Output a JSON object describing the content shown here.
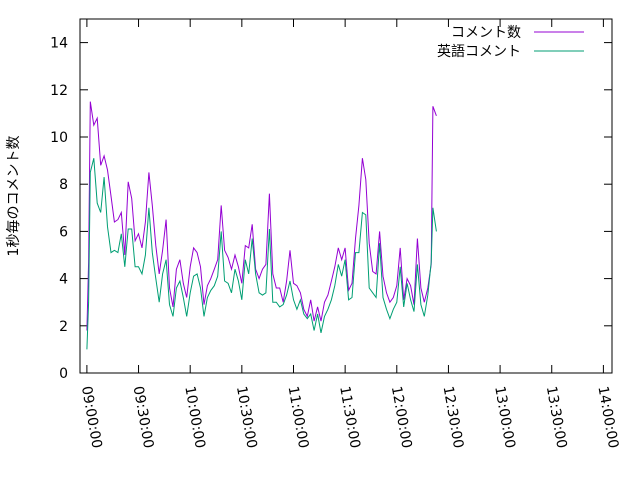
{
  "chart_data": {
    "type": "line",
    "title": "",
    "xlabel": "",
    "ylabel": "1秒毎のコメント数",
    "ylim": [
      0,
      15
    ],
    "yticks": [
      0,
      2,
      4,
      6,
      8,
      10,
      12,
      14
    ],
    "xlim": [
      "08:56:00",
      "14:05:00"
    ],
    "xticks": [
      "09:00:00",
      "09:30:00",
      "10:00:00",
      "10:30:00",
      "11:00:00",
      "11:30:00",
      "12:00:00",
      "12:30:00",
      "13:00:00",
      "13:30:00",
      "14:00:00"
    ],
    "grid": false,
    "legend": "top-right",
    "series": [
      {
        "name": "コメント数",
        "color": "#9400d3",
        "points": [
          [
            "09:00:00",
            1.8
          ],
          [
            "09:01:00",
            4.7
          ],
          [
            "09:02:00",
            11.5
          ],
          [
            "09:04:00",
            10.5
          ],
          [
            "09:06:00",
            10.8
          ],
          [
            "09:08:00",
            8.8
          ],
          [
            "09:10:00",
            9.2
          ],
          [
            "09:12:00",
            8.6
          ],
          [
            "09:14:00",
            7.5
          ],
          [
            "09:16:00",
            6.4
          ],
          [
            "09:18:00",
            6.5
          ],
          [
            "09:20:00",
            6.8
          ],
          [
            "09:22:00",
            5.0
          ],
          [
            "09:24:00",
            8.1
          ],
          [
            "09:26:00",
            7.4
          ],
          [
            "09:28:00",
            5.6
          ],
          [
            "09:30:00",
            5.9
          ],
          [
            "09:32:00",
            5.3
          ],
          [
            "09:34:00",
            6.4
          ],
          [
            "09:36:00",
            8.5
          ],
          [
            "09:38:00",
            7.1
          ],
          [
            "09:40:00",
            5.4
          ],
          [
            "09:42:00",
            4.2
          ],
          [
            "09:44:00",
            5.2
          ],
          [
            "09:46:00",
            6.5
          ],
          [
            "09:48:00",
            3.6
          ],
          [
            "09:50:00",
            2.8
          ],
          [
            "09:52:00",
            4.4
          ],
          [
            "09:54:00",
            4.8
          ],
          [
            "09:56:00",
            3.8
          ],
          [
            "09:58:00",
            3.2
          ],
          [
            "10:00:00",
            4.5
          ],
          [
            "10:02:00",
            5.3
          ],
          [
            "10:04:00",
            5.1
          ],
          [
            "10:06:00",
            4.5
          ],
          [
            "10:08:00",
            2.9
          ],
          [
            "10:10:00",
            3.7
          ],
          [
            "10:12:00",
            4.0
          ],
          [
            "10:14:00",
            4.4
          ],
          [
            "10:16:00",
            4.8
          ],
          [
            "10:18:00",
            7.1
          ],
          [
            "10:20:00",
            5.2
          ],
          [
            "10:22:00",
            4.9
          ],
          [
            "10:24:00",
            4.4
          ],
          [
            "10:26:00",
            5.0
          ],
          [
            "10:28:00",
            4.5
          ],
          [
            "10:30:00",
            3.8
          ],
          [
            "10:32:00",
            5.4
          ],
          [
            "10:34:00",
            5.3
          ],
          [
            "10:36:00",
            6.3
          ],
          [
            "10:38:00",
            4.4
          ],
          [
            "10:40:00",
            4.0
          ],
          [
            "10:42:00",
            4.4
          ],
          [
            "10:44:00",
            4.6
          ],
          [
            "10:46:00",
            7.6
          ],
          [
            "10:48:00",
            4.2
          ],
          [
            "10:50:00",
            3.6
          ],
          [
            "10:52:00",
            3.6
          ],
          [
            "10:54:00",
            3.0
          ],
          [
            "10:56:00",
            3.9
          ],
          [
            "10:58:00",
            5.2
          ],
          [
            "11:00:00",
            3.8
          ],
          [
            "11:02:00",
            3.7
          ],
          [
            "11:04:00",
            3.4
          ],
          [
            "11:06:00",
            2.7
          ],
          [
            "11:08:00",
            2.4
          ],
          [
            "11:10:00",
            3.1
          ],
          [
            "11:12:00",
            2.2
          ],
          [
            "11:14:00",
            2.8
          ],
          [
            "11:16:00",
            2.2
          ],
          [
            "11:18:00",
            3.0
          ],
          [
            "11:20:00",
            3.3
          ],
          [
            "11:22:00",
            3.9
          ],
          [
            "11:24:00",
            4.5
          ],
          [
            "11:26:00",
            5.3
          ],
          [
            "11:28:00",
            4.8
          ],
          [
            "11:30:00",
            5.3
          ],
          [
            "11:32:00",
            3.5
          ],
          [
            "11:34:00",
            3.8
          ],
          [
            "11:36:00",
            5.7
          ],
          [
            "11:38:00",
            7.1
          ],
          [
            "11:40:00",
            9.1
          ],
          [
            "11:42:00",
            8.2
          ],
          [
            "11:44:00",
            5.5
          ],
          [
            "11:46:00",
            4.3
          ],
          [
            "11:48:00",
            4.2
          ],
          [
            "11:50:00",
            6.0
          ],
          [
            "11:52:00",
            4.1
          ],
          [
            "11:54:00",
            3.4
          ],
          [
            "11:56:00",
            3.0
          ],
          [
            "11:58:00",
            3.2
          ],
          [
            "12:00:00",
            3.7
          ],
          [
            "12:02:00",
            5.3
          ],
          [
            "12:04:00",
            3.1
          ],
          [
            "12:06:00",
            4.0
          ],
          [
            "12:08:00",
            3.7
          ],
          [
            "12:10:00",
            2.9
          ],
          [
            "12:12:00",
            5.7
          ],
          [
            "12:14:00",
            3.6
          ],
          [
            "12:16:00",
            3.0
          ],
          [
            "12:18:00",
            3.6
          ],
          [
            "12:20:00",
            4.6
          ],
          [
            "12:21:00",
            11.3
          ],
          [
            "12:23:00",
            10.9
          ]
        ]
      },
      {
        "name": "英語コメント",
        "color": "#009e73",
        "points": [
          [
            "09:00:00",
            1.0
          ],
          [
            "09:01:00",
            3.0
          ],
          [
            "09:02:00",
            8.5
          ],
          [
            "09:04:00",
            9.1
          ],
          [
            "09:06:00",
            7.2
          ],
          [
            "09:08:00",
            6.8
          ],
          [
            "09:10:00",
            8.3
          ],
          [
            "09:12:00",
            6.2
          ],
          [
            "09:14:00",
            5.1
          ],
          [
            "09:16:00",
            5.2
          ],
          [
            "09:18:00",
            5.1
          ],
          [
            "09:20:00",
            5.9
          ],
          [
            "09:22:00",
            4.5
          ],
          [
            "09:24:00",
            6.1
          ],
          [
            "09:26:00",
            6.1
          ],
          [
            "09:28:00",
            4.5
          ],
          [
            "09:30:00",
            4.5
          ],
          [
            "09:32:00",
            4.2
          ],
          [
            "09:34:00",
            5.0
          ],
          [
            "09:36:00",
            7.0
          ],
          [
            "09:38:00",
            5.1
          ],
          [
            "09:40:00",
            4.0
          ],
          [
            "09:42:00",
            3.0
          ],
          [
            "09:44:00",
            4.2
          ],
          [
            "09:46:00",
            4.8
          ],
          [
            "09:48:00",
            2.9
          ],
          [
            "09:50:00",
            2.4
          ],
          [
            "09:52:00",
            3.6
          ],
          [
            "09:54:00",
            3.9
          ],
          [
            "09:56:00",
            3.2
          ],
          [
            "09:58:00",
            2.4
          ],
          [
            "10:00:00",
            3.4
          ],
          [
            "10:02:00",
            4.1
          ],
          [
            "10:04:00",
            4.2
          ],
          [
            "10:06:00",
            3.6
          ],
          [
            "10:08:00",
            2.4
          ],
          [
            "10:10:00",
            3.2
          ],
          [
            "10:12:00",
            3.5
          ],
          [
            "10:14:00",
            3.7
          ],
          [
            "10:16:00",
            4.1
          ],
          [
            "10:18:00",
            6.0
          ],
          [
            "10:20:00",
            3.9
          ],
          [
            "10:22:00",
            3.8
          ],
          [
            "10:24:00",
            3.4
          ],
          [
            "10:26:00",
            4.4
          ],
          [
            "10:28:00",
            3.9
          ],
          [
            "10:30:00",
            3.1
          ],
          [
            "10:32:00",
            4.8
          ],
          [
            "10:34:00",
            4.2
          ],
          [
            "10:36:00",
            5.7
          ],
          [
            "10:38:00",
            4.2
          ],
          [
            "10:40:00",
            3.4
          ],
          [
            "10:42:00",
            3.3
          ],
          [
            "10:44:00",
            3.4
          ],
          [
            "10:46:00",
            6.1
          ],
          [
            "10:48:00",
            3.0
          ],
          [
            "10:50:00",
            3.0
          ],
          [
            "10:52:00",
            2.8
          ],
          [
            "10:54:00",
            2.9
          ],
          [
            "10:56:00",
            3.3
          ],
          [
            "10:58:00",
            3.9
          ],
          [
            "11:00:00",
            3.1
          ],
          [
            "11:02:00",
            2.7
          ],
          [
            "11:04:00",
            3.1
          ],
          [
            "11:06:00",
            2.5
          ],
          [
            "11:08:00",
            2.3
          ],
          [
            "11:10:00",
            2.5
          ],
          [
            "11:12:00",
            1.8
          ],
          [
            "11:14:00",
            2.5
          ],
          [
            "11:16:00",
            1.7
          ],
          [
            "11:18:00",
            2.4
          ],
          [
            "11:20:00",
            2.7
          ],
          [
            "11:22:00",
            3.1
          ],
          [
            "11:24:00",
            3.7
          ],
          [
            "11:26:00",
            4.6
          ],
          [
            "11:28:00",
            4.1
          ],
          [
            "11:30:00",
            4.8
          ],
          [
            "11:32:00",
            3.1
          ],
          [
            "11:34:00",
            3.2
          ],
          [
            "11:36:00",
            5.1
          ],
          [
            "11:38:00",
            5.1
          ],
          [
            "11:40:00",
            6.8
          ],
          [
            "11:42:00",
            6.7
          ],
          [
            "11:44:00",
            3.6
          ],
          [
            "11:46:00",
            3.4
          ],
          [
            "11:48:00",
            3.2
          ],
          [
            "11:50:00",
            5.5
          ],
          [
            "11:52:00",
            3.2
          ],
          [
            "11:54:00",
            2.7
          ],
          [
            "11:56:00",
            2.3
          ],
          [
            "11:58:00",
            2.7
          ],
          [
            "12:00:00",
            3.0
          ],
          [
            "12:02:00",
            4.5
          ],
          [
            "12:04:00",
            2.8
          ],
          [
            "12:06:00",
            3.8
          ],
          [
            "12:08:00",
            3.1
          ],
          [
            "12:10:00",
            2.6
          ],
          [
            "12:12:00",
            4.6
          ],
          [
            "12:14:00",
            2.9
          ],
          [
            "12:16:00",
            2.4
          ],
          [
            "12:18:00",
            3.3
          ],
          [
            "12:20:00",
            4.7
          ],
          [
            "12:21:00",
            7.0
          ],
          [
            "12:23:00",
            6.0
          ]
        ]
      }
    ]
  }
}
